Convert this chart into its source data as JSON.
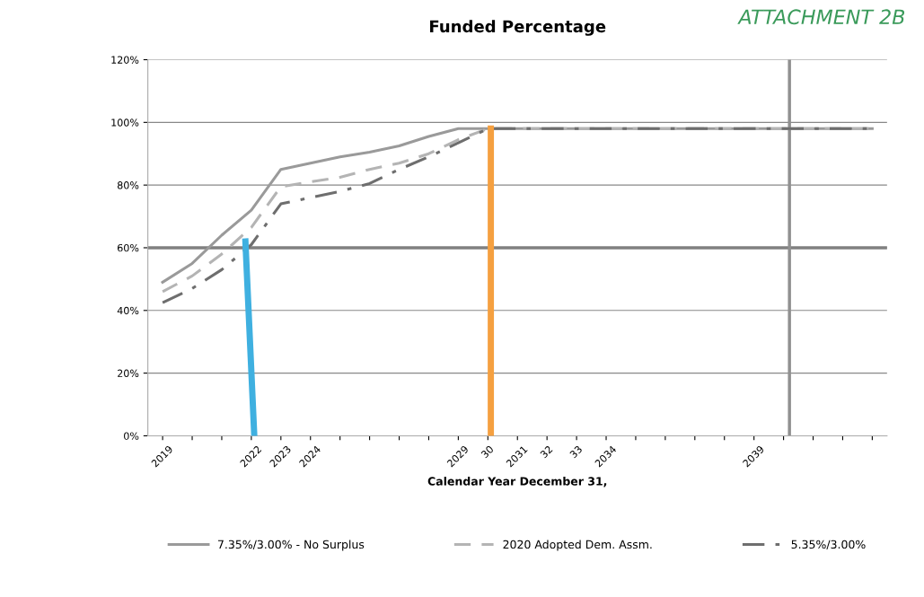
{
  "chart_data": {
    "type": "line",
    "title": "Funded Percentage",
    "xlabel": "Calendar Year December 31,",
    "annotations": [
      "ATTACHMENT 2B"
    ],
    "x": [
      2019,
      2020,
      2021,
      2022,
      2023,
      2024,
      2025,
      2026,
      2027,
      2028,
      2029,
      2030,
      2031,
      2032,
      2033,
      2034,
      2035,
      2036,
      2037,
      2038,
      2039,
      2040,
      2041,
      2042,
      2043
    ],
    "series": [
      {
        "name": "7.35%/3.00% - No Surplus",
        "color": "#9a9a9a",
        "line_style": "solid",
        "values": [
          49,
          55,
          64,
          72,
          85,
          87,
          89,
          90.5,
          92.5,
          95.5,
          98,
          98,
          98,
          98,
          98,
          98,
          98,
          98,
          98,
          98,
          98,
          98,
          98,
          98,
          98
        ]
      },
      {
        "name": "2020 Adopted Dem. Assm.",
        "color": "#b4b4b4",
        "line_style": "dashed",
        "values": [
          46,
          51,
          58,
          66.5,
          79.5,
          81,
          82.5,
          85,
          87,
          90,
          94.5,
          98,
          98,
          98,
          98,
          98,
          98,
          98,
          98,
          98,
          98,
          98,
          98,
          98,
          98
        ]
      },
      {
        "name": "5.35%/3.00%",
        "color": "#6e6e6e",
        "line_style": "dashdot",
        "values": [
          42.5,
          47,
          53,
          61,
          74,
          76,
          78,
          80.5,
          85,
          89,
          93.5,
          98,
          98,
          98,
          98,
          98,
          98,
          98,
          98,
          98,
          98,
          98,
          98,
          98,
          98
        ]
      },
      {
        "color": "#3fb0e0",
        "line_style": "solid",
        "x": [
          2021.8,
          2022.1
        ],
        "values": [
          62,
          0
        ]
      },
      {
        "color": "#f5a040",
        "line_style": "solid",
        "x": [
          2030.1,
          2030.1
        ],
        "values": [
          98,
          0
        ]
      }
    ],
    "ref_lines": [
      {
        "axis": "y",
        "value": 60,
        "color": "#808080"
      },
      {
        "axis": "x",
        "value": 2040.2,
        "color": "#909090"
      }
    ],
    "xlim": [
      2018.5,
      2043.5
    ],
    "xticks": [
      2019,
      {
        "value": 2020,
        "label": null
      },
      {
        "value": 2021,
        "label": null
      },
      2022,
      2023,
      2024,
      {
        "value": 2025,
        "label": null
      },
      {
        "value": 2026,
        "label": null
      },
      {
        "value": 2027,
        "label": null
      },
      {
        "value": 2028,
        "label": null
      },
      2029,
      {
        "value": 2030,
        "label": "30"
      },
      2031,
      {
        "value": 2032,
        "label": "32"
      },
      {
        "value": 2033,
        "label": "33"
      },
      2034,
      {
        "value": 2035,
        "label": null
      },
      {
        "value": 2036,
        "label": null
      },
      {
        "value": 2037,
        "label": null
      },
      {
        "value": 2038,
        "label": null
      },
      2039,
      {
        "value": 2040,
        "label": null
      },
      {
        "value": 2041,
        "label": null
      },
      {
        "value": 2042,
        "label": null
      },
      {
        "value": 2043,
        "label": null
      }
    ],
    "ylim": [
      0,
      120
    ],
    "yticks": [
      {
        "value": 0,
        "label": "0%"
      },
      {
        "value": 20,
        "label": "20%"
      },
      {
        "value": 40,
        "label": "40%"
      },
      {
        "value": 60,
        "label": "60%"
      },
      {
        "value": 80,
        "label": "80%"
      },
      {
        "value": 100,
        "label": "100%"
      },
      {
        "value": 120,
        "label": "120%"
      }
    ],
    "grid": "y",
    "legend": "bottom"
  }
}
